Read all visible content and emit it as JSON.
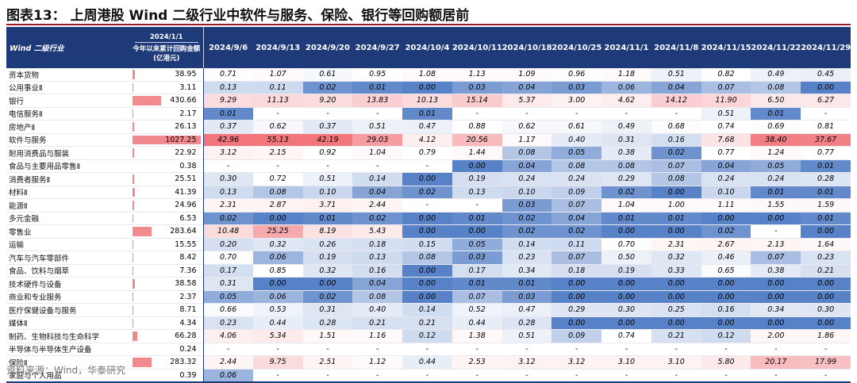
{
  "title": "图表13： 上周港股 Wind 二级行业中软件与服务、保险、银行等回购额居前",
  "table": {
    "industry_header": "Wind 二级行业",
    "ytd_header_date": "2024/1/1",
    "ytd_header_label": "今年以来累计回购金额(亿港元)",
    "weeks": [
      "2024/9/6",
      "2024/9/13",
      "2024/9/20",
      "2024/9/27",
      "2024/10/4",
      "2024/10/11",
      "2024/10/18",
      "2024/10/25",
      "2024/11/1",
      "2024/11/8",
      "2024/11/15",
      "2024/11/22",
      "2024/11/29"
    ],
    "rows": [
      {
        "name": "资本货物",
        "ytd": "38.95",
        "vals": [
          "0.71",
          "1.07",
          "0.61",
          "0.95",
          "1.08",
          "1.13",
          "1.09",
          "0.96",
          "1.18",
          "0.51",
          "0.82",
          "0.49",
          "0.45"
        ]
      },
      {
        "name": "公用事业Ⅱ",
        "ytd": "3.11",
        "vals": [
          "0.13",
          "0.11",
          "0.02",
          "0.01",
          "0.00",
          "0.03",
          "0.04",
          "0.03",
          "0.06",
          "0.04",
          "0.07",
          "0.08",
          "0.00"
        ]
      },
      {
        "name": "银行",
        "ytd": "430.66",
        "vals": [
          "9.29",
          "11.13",
          "9.20",
          "13.83",
          "10.13",
          "15.14",
          "5.37",
          "3.00",
          "4.62",
          "14.12",
          "11.90",
          "6.50",
          "6.27"
        ]
      },
      {
        "name": "电信服务Ⅱ",
        "ytd": "2.17",
        "vals": [
          "0.01",
          "-",
          "-",
          "-",
          "0.01",
          "-",
          "-",
          "-",
          "-",
          "-",
          "0.51",
          "0.01",
          "-"
        ]
      },
      {
        "name": "房地产Ⅱ",
        "ytd": "26.13",
        "vals": [
          "0.37",
          "0.62",
          "0.37",
          "0.51",
          "0.47",
          "0.88",
          "0.62",
          "0.61",
          "0.49",
          "0.68",
          "0.74",
          "0.69",
          "0.81"
        ]
      },
      {
        "name": "软件与服务",
        "ytd": "1027.25",
        "vals": [
          "42.96",
          "55.13",
          "42.19",
          "29.03",
          "4.12",
          "20.56",
          "1.17",
          "0.40",
          "0.31",
          "0.16",
          "7.68",
          "38.40",
          "37.67"
        ]
      },
      {
        "name": "耐用消费品与服装",
        "ytd": "22.92",
        "vals": [
          "3.12",
          "2.15",
          "0.92",
          "1.04",
          "0.79",
          "1.44",
          "0.08",
          "0.05",
          "0.38",
          "0.02",
          "0.77",
          "1.24",
          "0.77"
        ]
      },
      {
        "name": "食品与主要用品零售Ⅱ",
        "ytd": "0.38",
        "vals": [
          "-",
          "-",
          "-",
          "-",
          "-",
          "0.00",
          "0.04",
          "0.08",
          "0.08",
          "0.07",
          "0.04",
          "0.05",
          "0.01"
        ]
      },
      {
        "name": "消费者服务Ⅱ",
        "ytd": "25.51",
        "vals": [
          "0.30",
          "0.72",
          "0.51",
          "0.14",
          "0.00",
          "0.19",
          "0.24",
          "0.24",
          "0.29",
          "0.08",
          "0.24",
          "0.24",
          "0.28"
        ]
      },
      {
        "name": "材料Ⅱ",
        "ytd": "41.39",
        "vals": [
          "0.13",
          "0.08",
          "0.10",
          "0.04",
          "0.02",
          "0.13",
          "0.10",
          "0.09",
          "0.02",
          "0.00",
          "0.10",
          "0.01",
          "0.01"
        ]
      },
      {
        "name": "能源Ⅱ",
        "ytd": "24.96",
        "vals": [
          "2.31",
          "2.87",
          "3.71",
          "2.44",
          "-",
          "-",
          "0.03",
          "0.07",
          "1.04",
          "1.00",
          "1.11",
          "1.55",
          "1.59"
        ]
      },
      {
        "name": "多元金融",
        "ytd": "6.53",
        "vals": [
          "0.02",
          "0.00",
          "0.01",
          "0.02",
          "0.00",
          "0.01",
          "0.02",
          "0.04",
          "0.01",
          "0.01",
          "0.00",
          "0.00",
          "0.01"
        ]
      },
      {
        "name": "零售业",
        "ytd": "283.64",
        "vals": [
          "10.48",
          "25.25",
          "8.19",
          "5.43",
          "0.00",
          "0.00",
          "0.02",
          "0.02",
          "0.00",
          "0.00",
          "0.02",
          "-",
          "0.00"
        ]
      },
      {
        "name": "运输",
        "ytd": "15.55",
        "vals": [
          "0.20",
          "0.32",
          "0.26",
          "0.18",
          "0.15",
          "0.05",
          "0.14",
          "0.11",
          "0.70",
          "2.31",
          "2.67",
          "2.13",
          "1.64"
        ]
      },
      {
        "name": "汽车与汽车零部件",
        "ytd": "8.42",
        "vals": [
          "0.70",
          "0.06",
          "0.19",
          "0.13",
          "0.08",
          "0.03",
          "0.23",
          "0.07",
          "0.50",
          "0.32",
          "0.46",
          "0.07",
          "0.23"
        ]
      },
      {
        "name": "食品、饮料与烟草",
        "ytd": "7.36",
        "vals": [
          "0.17",
          "0.85",
          "0.32",
          "0.16",
          "0.00",
          "0.17",
          "0.34",
          "0.18",
          "0.19",
          "0.33",
          "0.65",
          "0.38",
          "0.21"
        ]
      },
      {
        "name": "技术硬件与设备",
        "ytd": "38.58",
        "vals": [
          "0.31",
          "0.00",
          "0.00",
          "0.04",
          "0.00",
          "0.01",
          "0.01",
          "0.00",
          "0.00",
          "0.00",
          "0.00",
          "0.00",
          "0.00"
        ]
      },
      {
        "name": "商业和专业服务",
        "ytd": "2.37",
        "vals": [
          "0.05",
          "0.06",
          "0.02",
          "0.08",
          "0.00",
          "0.07",
          "0.03",
          "0.00",
          "0.00",
          "0.00",
          "0.00",
          "0.00",
          "0.00"
        ]
      },
      {
        "name": "医疗保健设备与服务",
        "ytd": "8.71",
        "vals": [
          "0.66",
          "0.53",
          "0.31",
          "0.40",
          "0.14",
          "0.52",
          "0.47",
          "0.29",
          "0.30",
          "0.25",
          "0.16",
          "0.34",
          "0.30"
        ]
      },
      {
        "name": "媒体Ⅱ",
        "ytd": "4.34",
        "vals": [
          "0.23",
          "0.44",
          "0.28",
          "0.21",
          "0.21",
          "0.44",
          "0.28",
          "0.00",
          "0.00",
          "0.00",
          "0.00",
          "0.00",
          "0.00"
        ]
      },
      {
        "name": "制药、生物科技与生命科学",
        "ytd": "66.28",
        "vals": [
          "4.06",
          "5.34",
          "1.51",
          "1.16",
          "0.12",
          "1.38",
          "0.51",
          "0.09",
          "0.74",
          "0.21",
          "0.12",
          "2.00",
          "1.86"
        ]
      },
      {
        "name": "半导体与半导体生产设备",
        "ytd": "0.24",
        "vals": [
          "-",
          "-",
          "-",
          "-",
          "-",
          "-",
          "-",
          "-",
          "-",
          "-",
          "-",
          "-",
          "-"
        ]
      },
      {
        "name": "保险Ⅱ",
        "ytd": "283.32",
        "vals": [
          "2.44",
          "9.75",
          "2.51",
          "1.12",
          "0.44",
          "2.53",
          "3.12",
          "3.12",
          "3.10",
          "3.10",
          "5.80",
          "20.17",
          "17.99"
        ]
      },
      {
        "name": "家庭与个人用品",
        "ytd": "0.39",
        "vals": [
          "0.06",
          "-",
          "-",
          "-",
          "-",
          "-",
          "-",
          "-",
          "-",
          "-",
          "-",
          "-",
          "-"
        ]
      }
    ]
  },
  "source": "资料来源：Wind，华泰研究",
  "colors": {
    "header_bg": "#1f3a78",
    "ytd_bar": "#f08a8f",
    "heat_red": "#f08a8f",
    "heat_blue": "#4f7bc4",
    "title_rule": "#9a1c2a"
  }
}
